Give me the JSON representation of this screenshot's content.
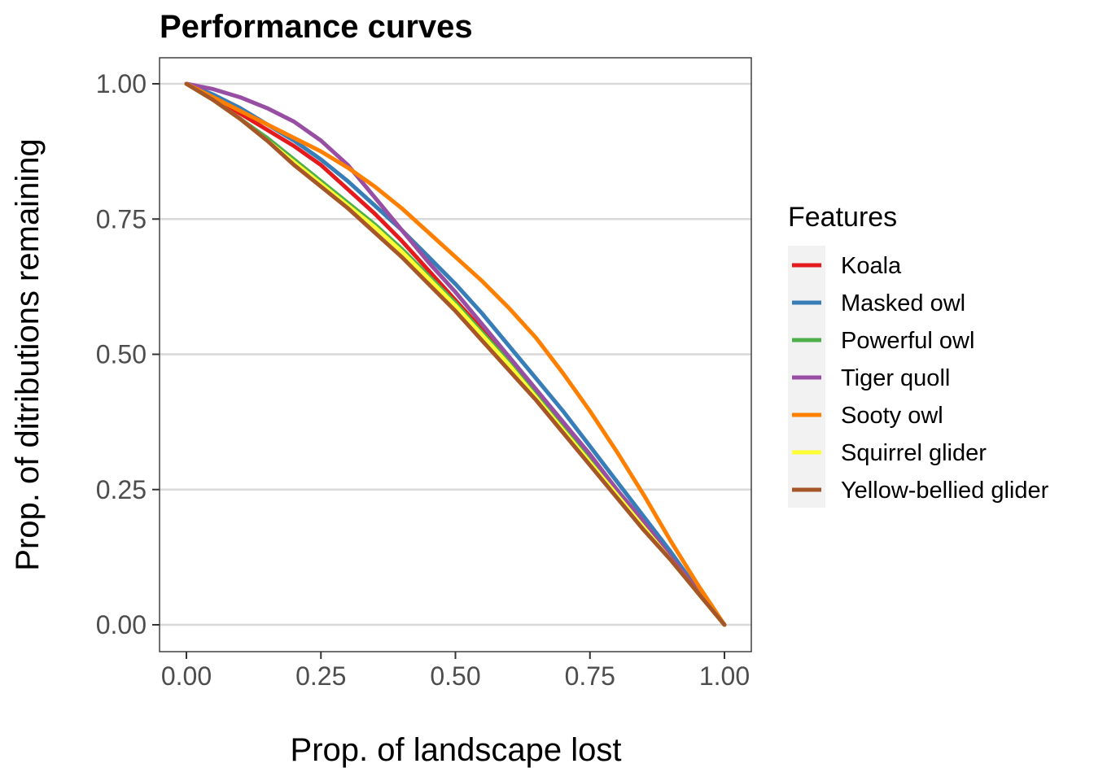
{
  "chart_data": {
    "type": "line",
    "title": "Performance curves",
    "xlabel": "Prop. of landscape lost",
    "ylabel": "Prop. of ditributions remaining",
    "xlim": [
      -0.05,
      1.05
    ],
    "ylim": [
      -0.05,
      1.05
    ],
    "x_ticks": [
      "0.00",
      "0.25",
      "0.50",
      "0.75",
      "1.00"
    ],
    "y_ticks": [
      "0.00",
      "0.25",
      "0.50",
      "0.75",
      "1.00"
    ],
    "grid": "horizontal major",
    "legend": {
      "title": "Features",
      "position": "right"
    },
    "series": [
      {
        "name": "Koala",
        "color": "#e41a1c",
        "points": [
          [
            0,
            1
          ],
          [
            0.05,
            0.975
          ],
          [
            0.1,
            0.945
          ],
          [
            0.15,
            0.915
          ],
          [
            0.2,
            0.885
          ],
          [
            0.25,
            0.85
          ],
          [
            0.3,
            0.805
          ],
          [
            0.35,
            0.76
          ],
          [
            0.4,
            0.71
          ],
          [
            0.45,
            0.655
          ],
          [
            0.5,
            0.6
          ],
          [
            0.55,
            0.545
          ],
          [
            0.6,
            0.49
          ],
          [
            0.65,
            0.43
          ],
          [
            0.7,
            0.37
          ],
          [
            0.75,
            0.31
          ],
          [
            0.8,
            0.245
          ],
          [
            0.85,
            0.185
          ],
          [
            0.9,
            0.125
          ],
          [
            0.95,
            0.06
          ],
          [
            1.0,
            0
          ]
        ]
      },
      {
        "name": "Masked owl",
        "color": "#377eb8",
        "points": [
          [
            0,
            1
          ],
          [
            0.05,
            0.98
          ],
          [
            0.1,
            0.955
          ],
          [
            0.15,
            0.925
          ],
          [
            0.2,
            0.895
          ],
          [
            0.25,
            0.86
          ],
          [
            0.3,
            0.82
          ],
          [
            0.35,
            0.775
          ],
          [
            0.4,
            0.73
          ],
          [
            0.45,
            0.68
          ],
          [
            0.5,
            0.63
          ],
          [
            0.55,
            0.575
          ],
          [
            0.6,
            0.515
          ],
          [
            0.65,
            0.455
          ],
          [
            0.7,
            0.395
          ],
          [
            0.75,
            0.33
          ],
          [
            0.8,
            0.265
          ],
          [
            0.85,
            0.2
          ],
          [
            0.9,
            0.135
          ],
          [
            0.95,
            0.065
          ],
          [
            1.0,
            0
          ]
        ]
      },
      {
        "name": "Powerful owl",
        "color": "#4daf4a",
        "points": [
          [
            0,
            1
          ],
          [
            0.05,
            0.97
          ],
          [
            0.1,
            0.935
          ],
          [
            0.15,
            0.9
          ],
          [
            0.2,
            0.86
          ],
          [
            0.25,
            0.82
          ],
          [
            0.3,
            0.78
          ],
          [
            0.35,
            0.74
          ],
          [
            0.4,
            0.695
          ],
          [
            0.45,
            0.645
          ],
          [
            0.5,
            0.595
          ],
          [
            0.55,
            0.54
          ],
          [
            0.6,
            0.485
          ],
          [
            0.65,
            0.425
          ],
          [
            0.7,
            0.365
          ],
          [
            0.75,
            0.305
          ],
          [
            0.8,
            0.245
          ],
          [
            0.85,
            0.185
          ],
          [
            0.9,
            0.125
          ],
          [
            0.95,
            0.06
          ],
          [
            1.0,
            0
          ]
        ]
      },
      {
        "name": "Tiger quoll",
        "color": "#984ea3",
        "points": [
          [
            0,
            1
          ],
          [
            0.05,
            0.99
          ],
          [
            0.1,
            0.975
          ],
          [
            0.15,
            0.955
          ],
          [
            0.2,
            0.93
          ],
          [
            0.25,
            0.895
          ],
          [
            0.3,
            0.85
          ],
          [
            0.35,
            0.79
          ],
          [
            0.4,
            0.73
          ],
          [
            0.45,
            0.67
          ],
          [
            0.5,
            0.615
          ],
          [
            0.55,
            0.555
          ],
          [
            0.6,
            0.495
          ],
          [
            0.65,
            0.435
          ],
          [
            0.7,
            0.375
          ],
          [
            0.75,
            0.315
          ],
          [
            0.8,
            0.25
          ],
          [
            0.85,
            0.19
          ],
          [
            0.9,
            0.125
          ],
          [
            0.95,
            0.065
          ],
          [
            1.0,
            0
          ]
        ]
      },
      {
        "name": "Sooty owl",
        "color": "#ff7f00",
        "points": [
          [
            0,
            1
          ],
          [
            0.05,
            0.975
          ],
          [
            0.1,
            0.95
          ],
          [
            0.15,
            0.925
          ],
          [
            0.2,
            0.9
          ],
          [
            0.25,
            0.875
          ],
          [
            0.3,
            0.845
          ],
          [
            0.35,
            0.81
          ],
          [
            0.4,
            0.77
          ],
          [
            0.45,
            0.725
          ],
          [
            0.5,
            0.68
          ],
          [
            0.55,
            0.635
          ],
          [
            0.6,
            0.585
          ],
          [
            0.65,
            0.53
          ],
          [
            0.7,
            0.465
          ],
          [
            0.75,
            0.395
          ],
          [
            0.8,
            0.32
          ],
          [
            0.85,
            0.24
          ],
          [
            0.9,
            0.155
          ],
          [
            0.95,
            0.075
          ],
          [
            1.0,
            0
          ]
        ]
      },
      {
        "name": "Squirrel glider",
        "color": "#ffff33",
        "points": [
          [
            0,
            1
          ],
          [
            0.05,
            0.97
          ],
          [
            0.1,
            0.935
          ],
          [
            0.15,
            0.895
          ],
          [
            0.2,
            0.855
          ],
          [
            0.25,
            0.815
          ],
          [
            0.3,
            0.775
          ],
          [
            0.35,
            0.735
          ],
          [
            0.4,
            0.69
          ],
          [
            0.45,
            0.64
          ],
          [
            0.5,
            0.59
          ],
          [
            0.55,
            0.535
          ],
          [
            0.6,
            0.48
          ],
          [
            0.65,
            0.42
          ],
          [
            0.7,
            0.36
          ],
          [
            0.75,
            0.3
          ],
          [
            0.8,
            0.24
          ],
          [
            0.85,
            0.18
          ],
          [
            0.9,
            0.12
          ],
          [
            0.95,
            0.06
          ],
          [
            1.0,
            0
          ]
        ]
      },
      {
        "name": "Yellow-bellied glider",
        "color": "#a65628",
        "points": [
          [
            0,
            1
          ],
          [
            0.05,
            0.97
          ],
          [
            0.1,
            0.935
          ],
          [
            0.15,
            0.895
          ],
          [
            0.2,
            0.85
          ],
          [
            0.25,
            0.81
          ],
          [
            0.3,
            0.77
          ],
          [
            0.35,
            0.725
          ],
          [
            0.4,
            0.68
          ],
          [
            0.45,
            0.63
          ],
          [
            0.5,
            0.58
          ],
          [
            0.55,
            0.525
          ],
          [
            0.6,
            0.47
          ],
          [
            0.65,
            0.415
          ],
          [
            0.7,
            0.355
          ],
          [
            0.75,
            0.295
          ],
          [
            0.8,
            0.235
          ],
          [
            0.85,
            0.175
          ],
          [
            0.9,
            0.12
          ],
          [
            0.95,
            0.06
          ],
          [
            1.0,
            0
          ]
        ]
      }
    ]
  }
}
